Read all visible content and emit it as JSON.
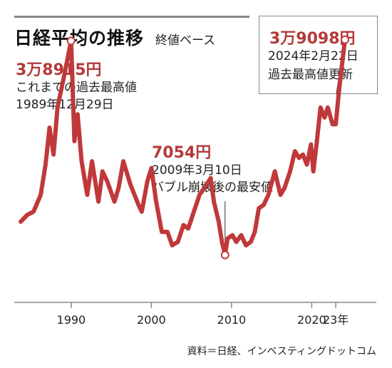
{
  "header": {
    "title": "日経平均の推移",
    "subtitle": "終値ベース"
  },
  "annotations": {
    "peak_1989": {
      "value": "3万8915円",
      "line1": "これまでの過去最高値",
      "line2": "1989年12月29日"
    },
    "low_2009": {
      "value": "7054円",
      "line1": "2009年3月10日",
      "line2": "バブル崩壊後の最安値"
    },
    "peak_2024": {
      "value": "3万9098円",
      "line1": "2024年2月22日",
      "line2": "過去最高値更新"
    }
  },
  "source": "資料＝日経、インベスティングドットコム",
  "colors": {
    "line": "#c0393a",
    "axis": "#888888",
    "annotation_value": "#b43a3a"
  },
  "chart_data": {
    "type": "line",
    "x_tick_labels": [
      "1990",
      "2000",
      "2010",
      "2020",
      "23年"
    ],
    "x_ticks": [
      1990,
      2000,
      2010,
      2020,
      2023
    ],
    "xlim": [
      1983.7,
      2024.5
    ],
    "ylim": [
      0,
      45000
    ],
    "series": [
      {
        "x": [
          1983.7,
          1984.5,
          1985.3,
          1986.2,
          1986.8,
          1987.3,
          1987.8,
          1988.3,
          1989.0,
          1989.99,
          1990.4,
          1990.8,
          1991.3,
          1992.0,
          1992.6,
          1993.4,
          1993.9,
          1994.5,
          1995.4,
          1995.9,
          1996.5,
          1997.4,
          1998.4,
          1998.8,
          1999.5,
          2000.0,
          2000.6,
          2001.3,
          2002.0,
          2002.6,
          2003.3,
          2004.0,
          2004.6,
          2005.3,
          2006.0,
          2006.6,
          2007.4,
          2007.8,
          2008.4,
          2008.8,
          2009.19,
          2009.5,
          2010.1,
          2010.6,
          2011.2,
          2011.8,
          2012.4,
          2012.9,
          2013.4,
          2014.0,
          2014.6,
          2015.4,
          2016.1,
          2016.6,
          2017.3,
          2017.9,
          2018.4,
          2018.9,
          2019.4,
          2019.9,
          2020.2,
          2020.6,
          2021.1,
          2021.6,
          2022.0,
          2022.6,
          2023.0,
          2023.4,
          2024.14
        ],
        "y": [
          12000,
          13000,
          13500,
          16000,
          20500,
          26000,
          22000,
          29000,
          33000,
          38915,
          24000,
          28000,
          21000,
          16000,
          21000,
          15000,
          19500,
          18000,
          15000,
          17000,
          21000,
          17500,
          14500,
          13500,
          18000,
          20000,
          15000,
          10500,
          10500,
          8500,
          9000,
          11500,
          11000,
          13500,
          16000,
          17000,
          18500,
          15000,
          12000,
          9000,
          7054,
          9500,
          10000,
          9000,
          10000,
          8500,
          9000,
          10500,
          14000,
          14500,
          16000,
          19500,
          16000,
          17000,
          19500,
          22500,
          21500,
          22000,
          20500,
          23500,
          19500,
          23500,
          29000,
          27500,
          29000,
          26500,
          26500,
          31500,
          39098
        ]
      }
    ]
  }
}
